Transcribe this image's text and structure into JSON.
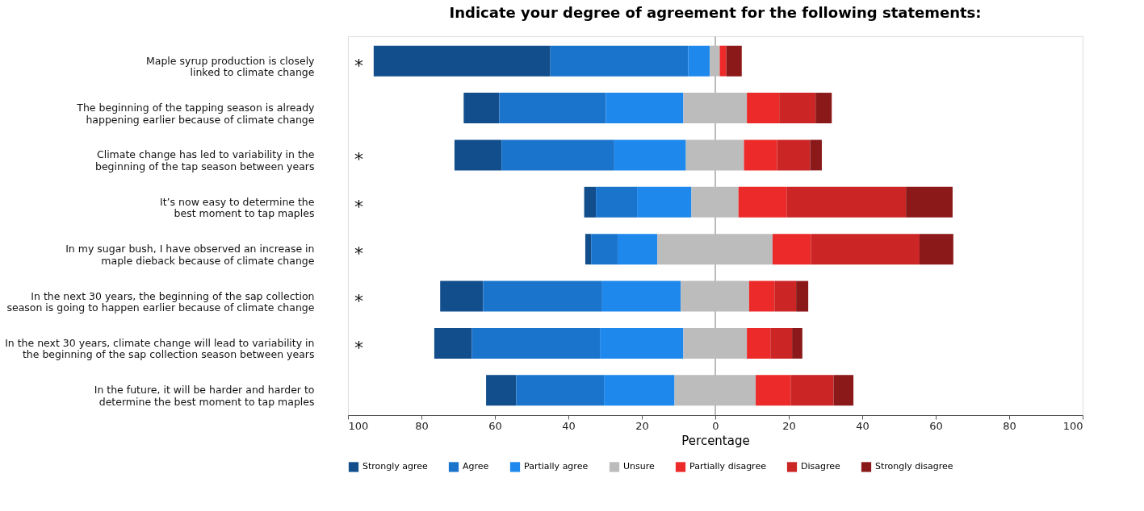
{
  "chart_data": {
    "type": "bar",
    "orientation": "horizontal",
    "title": "Indicate your degree of agreement for the following statements:",
    "xlabel": "Percentage",
    "categories": [
      "Maple syrup production is closely\nlinked to climate change",
      "The beginning of the tapping season is already\nhappening earlier because of climate change",
      "Climate change has led to variability in the\nbeginning of the tap season between years",
      "It’s now easy to determine the\nbest moment to tap maples",
      "In my sugar bush, I have observed an increase in\nmaple dieback because of climate change",
      "In the next 30 years, the beginning of the sap collection\nseason is going to happen earlier because of climate change",
      "In the next 30 years, climate change will lead to variability in\nthe beginning of the sap collection season between years",
      "In the future, it will be harder and harder to\ndetermine the best moment to tap maples"
    ],
    "series": [
      {
        "name": "Strongly agree",
        "color": "#114e8b",
        "base": [
          -93.0,
          -68.5,
          -71.0,
          -35.7,
          -35.4,
          -74.9,
          -76.5,
          -62.4
        ],
        "values": [
          48.1,
          9.7,
          12.8,
          3.2,
          1.6,
          11.7,
          10.2,
          8.2
        ],
        "value_labels": [
          "*",
          null,
          "*",
          "*",
          "*",
          "*",
          "*",
          null
        ]
      },
      {
        "name": "Agree",
        "color": "#1b74cc",
        "base": [
          -44.9,
          -58.8,
          -58.2,
          -32.5,
          -33.8,
          -63.2,
          -66.3,
          -54.2
        ],
        "values": [
          37.5,
          29.0,
          30.7,
          11.2,
          7.2,
          32.4,
          34.9,
          23.9
        ]
      },
      {
        "name": "Partially agree",
        "color": "#1e88ec",
        "base": [
          -7.4,
          -29.8,
          -27.5,
          -21.3,
          -26.6,
          -30.8,
          -31.4,
          -30.3
        ],
        "values": [
          5.9,
          21.1,
          19.5,
          14.8,
          10.8,
          21.4,
          22.7,
          19.2
        ]
      },
      {
        "name": "Unsure",
        "color": "#bcbcbc",
        "base": [
          -1.5,
          -8.7,
          -8.0,
          -6.5,
          -15.8,
          -9.4,
          -8.7,
          -11.1
        ],
        "values": [
          2.7,
          17.3,
          15.8,
          12.8,
          31.4,
          18.6,
          17.3,
          22.1
        ]
      },
      {
        "name": "Partially disagree",
        "color": "#ec2a2a",
        "base": [
          1.2,
          8.6,
          7.8,
          6.3,
          15.6,
          9.2,
          8.6,
          11.0
        ],
        "values": [
          1.8,
          8.8,
          9.0,
          13.1,
          10.4,
          6.9,
          6.4,
          9.5
        ]
      },
      {
        "name": "Disagree",
        "color": "#cb2526",
        "base": [
          null,
          17.4,
          16.8,
          19.4,
          26.0,
          16.1,
          15.0,
          20.5
        ],
        "values": [
          null,
          9.9,
          9.0,
          32.5,
          29.6,
          5.9,
          5.9,
          11.7
        ]
      },
      {
        "name": "Strongly disagree",
        "color": "#8b191a",
        "base": [
          3.0,
          27.3,
          25.8,
          51.9,
          55.6,
          22.0,
          20.9,
          32.2
        ],
        "values": [
          4.2,
          4.4,
          3.2,
          12.7,
          9.2,
          3.3,
          2.8,
          5.4
        ]
      }
    ],
    "xlim": [
      -100,
      100
    ],
    "xticks": [
      {
        "value": -100,
        "label": "100"
      },
      {
        "value": -80,
        "label": "80"
      },
      {
        "value": -60,
        "label": "60"
      },
      {
        "value": -40,
        "label": "40"
      },
      {
        "value": -20,
        "label": "20"
      },
      0,
      20,
      40,
      60,
      80,
      100
    ],
    "ref_lines": [
      {
        "axis": "x",
        "value": 0,
        "color": "#bbbbbb"
      }
    ],
    "grid": false,
    "legend": "bottom"
  }
}
